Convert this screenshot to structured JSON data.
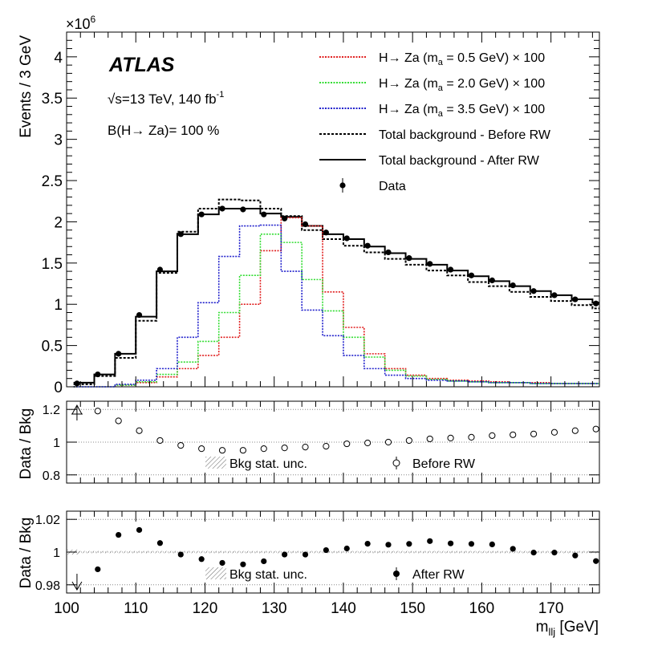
{
  "atlas": {
    "brand": "ATLAS",
    "energy_prefix": "√s=13 TeV, 140 fb",
    "energy_sup": "-1",
    "br_label": "B(H→ Za)= 100 %"
  },
  "legend": [
    {
      "key": "sig05",
      "pre": "H→ Za (m",
      "sub": "a",
      "post": " = 0.5 GeV) × 100"
    },
    {
      "key": "sig20",
      "pre": "H→ Za (m",
      "sub": "a",
      "post": " = 2.0 GeV) × 100"
    },
    {
      "key": "sig35",
      "pre": "H→ Za (m",
      "sub": "a",
      "post": " = 3.5 GeV) × 100"
    },
    {
      "key": "before",
      "text": "Total background - Before RW"
    },
    {
      "key": "after",
      "text": "Total background - After RW"
    },
    {
      "key": "data",
      "text": "Data"
    }
  ],
  "colors": {
    "sig05": "#e02020",
    "sig20": "#33dd33",
    "sig35": "#2222cc",
    "background": "#000000",
    "data": "#000000",
    "grid": "#888888"
  },
  "chart_data": [
    {
      "type": "line",
      "title": "",
      "xlabel": "m_llj [GeV]",
      "ylabel": "Events / 3 GeV",
      "y_multiplier": "×10",
      "y_multiplier_exp": "6",
      "xlim": [
        100,
        177
      ],
      "ylim": [
        0,
        4.3
      ],
      "bin_edges": [
        101,
        104,
        107,
        110,
        113,
        116,
        119,
        122,
        125,
        128,
        131,
        134,
        137,
        140,
        143,
        146,
        149,
        152,
        155,
        158,
        161,
        164,
        167,
        170,
        173,
        176,
        177
      ],
      "series": [
        {
          "name": "Total background - After RW",
          "key": "after",
          "style": "step-solid",
          "values": [
            0.05,
            0.15,
            0.4,
            0.85,
            1.4,
            1.85,
            2.09,
            2.16,
            2.16,
            2.1,
            2.06,
            1.95,
            1.85,
            1.79,
            1.7,
            1.62,
            1.55,
            1.48,
            1.41,
            1.34,
            1.28,
            1.22,
            1.16,
            1.11,
            1.06,
            1.02
          ]
        },
        {
          "name": "Total background - Before RW",
          "key": "before",
          "style": "step-dashed",
          "values": [
            0.03,
            0.13,
            0.35,
            0.8,
            1.38,
            1.88,
            2.16,
            2.27,
            2.26,
            2.16,
            2.07,
            1.9,
            1.79,
            1.71,
            1.63,
            1.55,
            1.48,
            1.41,
            1.35,
            1.27,
            1.22,
            1.15,
            1.09,
            1.04,
            0.99,
            0.95
          ]
        },
        {
          "name": "H→ Za (m_a = 0.5 GeV) × 100",
          "key": "sig05",
          "style": "step-dotted",
          "values": [
            0.0,
            0.0,
            0.02,
            0.05,
            0.12,
            0.22,
            0.38,
            0.6,
            1.0,
            1.65,
            2.05,
            1.95,
            1.15,
            0.72,
            0.4,
            0.22,
            0.14,
            0.1,
            0.08,
            0.07,
            0.06,
            0.05,
            0.05,
            0.04,
            0.04,
            0.04
          ]
        },
        {
          "name": "H→ Za (m_a = 2.0 GeV) × 100",
          "key": "sig20",
          "style": "step-dotted",
          "values": [
            0.0,
            0.0,
            0.02,
            0.06,
            0.15,
            0.3,
            0.55,
            0.9,
            1.35,
            1.85,
            1.75,
            1.3,
            0.92,
            0.6,
            0.36,
            0.2,
            0.13,
            0.09,
            0.07,
            0.06,
            0.05,
            0.05,
            0.04,
            0.04,
            0.04,
            0.04
          ]
        },
        {
          "name": "H→ Za (m_a = 3.5 GeV) × 100",
          "key": "sig35",
          "style": "step-dotted",
          "values": [
            0.0,
            0.0,
            0.03,
            0.08,
            0.22,
            0.6,
            1.02,
            1.58,
            1.95,
            1.96,
            1.4,
            0.93,
            0.62,
            0.38,
            0.22,
            0.14,
            0.1,
            0.08,
            0.07,
            0.06,
            0.05,
            0.05,
            0.04,
            0.04,
            0.04,
            0.04
          ]
        },
        {
          "name": "Data",
          "key": "data",
          "style": "points",
          "x": [
            101.5,
            104.5,
            107.5,
            110.5,
            113.5,
            116.5,
            119.5,
            122.5,
            125.5,
            128.5,
            131.5,
            134.5,
            137.5,
            140.5,
            143.5,
            146.5,
            149.5,
            152.5,
            155.5,
            158.5,
            161.5,
            164.5,
            167.5,
            170.5,
            173.5,
            176.5
          ],
          "values": [
            0.04,
            0.15,
            0.4,
            0.87,
            1.42,
            1.85,
            2.09,
            2.16,
            2.15,
            2.09,
            2.04,
            1.97,
            1.87,
            1.8,
            1.71,
            1.63,
            1.56,
            1.49,
            1.42,
            1.35,
            1.29,
            1.23,
            1.16,
            1.11,
            1.06,
            1.01
          ]
        }
      ],
      "yticks": [
        0,
        0.5,
        1,
        1.5,
        2,
        2.5,
        3,
        3.5,
        4
      ],
      "ytick_labels": [
        "0",
        "0.5",
        "1",
        "1.5",
        "2",
        "2.5",
        "3",
        "3.5",
        "4"
      ]
    },
    {
      "type": "scatter",
      "ylabel": "Data / Bkg",
      "xlim": [
        100,
        177
      ],
      "ylim": [
        0.75,
        1.25
      ],
      "reference_line": 1.0,
      "yticks": [
        0.8,
        1,
        1.2
      ],
      "ytick_labels": [
        "0.8",
        "1",
        "1.2"
      ],
      "legend": [
        "Bkg stat. unc.",
        "Before RW"
      ],
      "out_of_range_marker": {
        "x": 101.5,
        "direction": "up"
      },
      "points": {
        "x": [
          104.5,
          107.5,
          110.5,
          113.5,
          116.5,
          119.5,
          122.5,
          125.5,
          128.5,
          131.5,
          134.5,
          137.5,
          140.5,
          143.5,
          146.5,
          149.5,
          152.5,
          155.5,
          158.5,
          161.5,
          164.5,
          167.5,
          170.5,
          173.5,
          176.5
        ],
        "y": [
          1.19,
          1.13,
          1.07,
          1.01,
          0.98,
          0.96,
          0.95,
          0.95,
          0.96,
          0.965,
          0.97,
          0.975,
          0.99,
          0.995,
          1.0,
          1.01,
          1.02,
          1.025,
          1.03,
          1.04,
          1.045,
          1.05,
          1.06,
          1.07,
          1.08
        ]
      }
    },
    {
      "type": "scatter",
      "ylabel": "Data / Bkg",
      "xlabel": "m_llj [GeV]",
      "xlim": [
        100,
        177
      ],
      "ylim": [
        0.975,
        1.025
      ],
      "reference_line": 1.0,
      "yticks": [
        0.98,
        1,
        1.02
      ],
      "ytick_labels": [
        "0.98",
        "1",
        "1.02"
      ],
      "xticks": [
        100,
        110,
        120,
        130,
        140,
        150,
        160,
        170
      ],
      "xtick_labels": [
        "100",
        "110",
        "120",
        "130",
        "140",
        "150",
        "160",
        "170"
      ],
      "legend": [
        "Bkg stat. unc.",
        "After RW"
      ],
      "out_of_range_marker": {
        "x": 101.5,
        "direction": "down"
      },
      "points": {
        "x": [
          104.5,
          107.5,
          110.5,
          113.5,
          116.5,
          119.5,
          122.5,
          125.5,
          128.5,
          131.5,
          134.5,
          137.5,
          140.5,
          143.5,
          146.5,
          149.5,
          152.5,
          155.5,
          158.5,
          161.5,
          164.5,
          167.5,
          170.5,
          173.5,
          176.5
        ],
        "y": [
          0.9895,
          1.0105,
          1.0135,
          1.0055,
          0.9985,
          0.9957,
          0.9934,
          0.9925,
          0.9944,
          0.9985,
          0.9985,
          1.0012,
          1.0022,
          1.0051,
          1.0045,
          1.005,
          1.0067,
          1.0053,
          1.005,
          1.0047,
          1.002,
          0.9997,
          0.9997,
          0.9979,
          0.9945
        ]
      }
    }
  ]
}
